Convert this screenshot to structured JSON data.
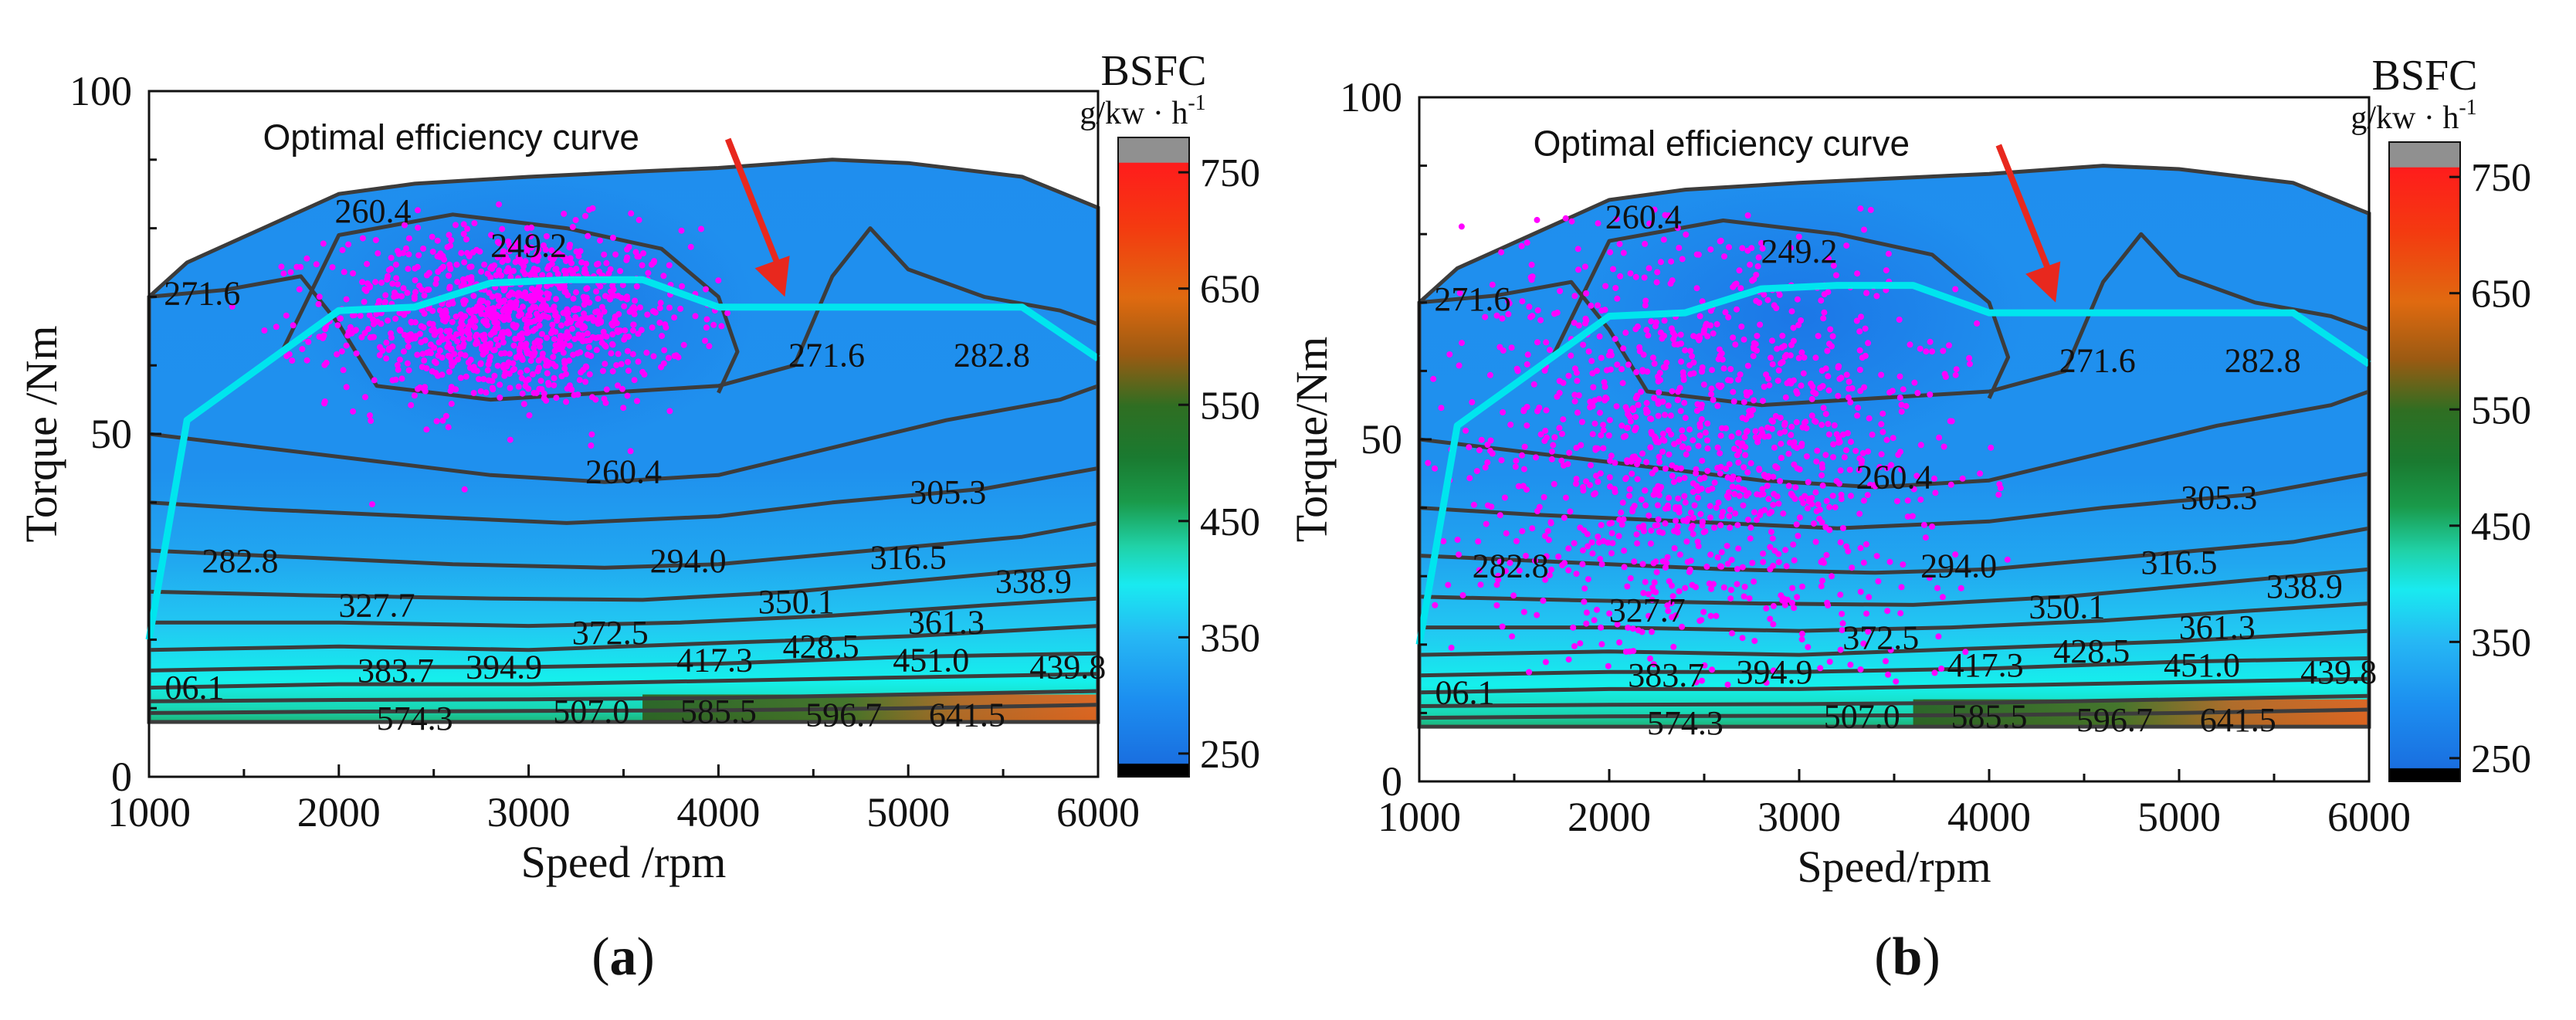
{
  "chart_data": [
    {
      "panel_label": "(a)",
      "type": "heatmap",
      "xlabel": "Speed /rpm",
      "ylabel": "Torque /Nm",
      "xlim": [
        1000,
        6000
      ],
      "ylim": [
        0,
        100
      ],
      "x_ticks": [
        "1000",
        "2000",
        "3000",
        "4000",
        "5000",
        "6000"
      ],
      "y_ticks": [
        "0",
        "50",
        "100"
      ],
      "annotation": "Optimal efficiency curve",
      "colorbar": {
        "title": "BSFC",
        "unit": "g/kw · h",
        "unit_sup": "-1",
        "ticks": [
          "250",
          "350",
          "450",
          "550",
          "650",
          "750"
        ],
        "range": [
          230,
          780
        ]
      },
      "optimal_curve": {
        "x": [
          1000,
          1200,
          2000,
          2400,
          2800,
          3200,
          3600,
          4000,
          5000,
          5600,
          6000
        ],
        "y": [
          20,
          52,
          68,
          68.5,
          72,
          72.5,
          72.5,
          68.5,
          68.5,
          68.5,
          61
        ]
      },
      "contour_labels": [
        {
          "text": "260.4",
          "x": 2180,
          "y": 82
        },
        {
          "text": "249.2",
          "x": 3000,
          "y": 77
        },
        {
          "text": "271.6",
          "x": 1280,
          "y": 70
        },
        {
          "text": "271.6",
          "x": 4570,
          "y": 61
        },
        {
          "text": "282.8",
          "x": 5440,
          "y": 61
        },
        {
          "text": "260.4",
          "x": 3500,
          "y": 44
        },
        {
          "text": "305.3",
          "x": 5210,
          "y": 41
        },
        {
          "text": "282.8",
          "x": 1480,
          "y": 31
        },
        {
          "text": "294.0",
          "x": 3840,
          "y": 31
        },
        {
          "text": "316.5",
          "x": 5000,
          "y": 31.5
        },
        {
          "text": "338.9",
          "x": 5660,
          "y": 28
        },
        {
          "text": "327.7",
          "x": 2200,
          "y": 24.5
        },
        {
          "text": "350.1",
          "x": 4410,
          "y": 25
        },
        {
          "text": "372.5",
          "x": 3430,
          "y": 20.5
        },
        {
          "text": "361.3",
          "x": 5200,
          "y": 22
        },
        {
          "text": "06.1",
          "x": 1240,
          "y": 12.5
        },
        {
          "text": "383.7",
          "x": 2300,
          "y": 15
        },
        {
          "text": "394.9",
          "x": 2870,
          "y": 15.5
        },
        {
          "text": "417.3",
          "x": 3980,
          "y": 16.5
        },
        {
          "text": "428.5",
          "x": 4540,
          "y": 18.5
        },
        {
          "text": "451.0",
          "x": 5120,
          "y": 16.5
        },
        {
          "text": "439.8",
          "x": 5840,
          "y": 15.5
        },
        {
          "text": "574.3",
          "x": 2400,
          "y": 8
        },
        {
          "text": "507.0",
          "x": 3330,
          "y": 9
        },
        {
          "text": "585.5",
          "x": 4000,
          "y": 9
        },
        {
          "text": "596.7",
          "x": 4660,
          "y": 8.5
        },
        {
          "text": "641.5",
          "x": 5310,
          "y": 8.5
        }
      ],
      "operating_points": {
        "x_center": 2900,
        "y_center": 67,
        "x_spread": 850,
        "y_spread": 6.5,
        "count": 1100
      }
    },
    {
      "panel_label": "(b)",
      "type": "heatmap",
      "xlabel": "Speed/rpm",
      "ylabel": "Torque/Nm",
      "xlim": [
        1000,
        6000
      ],
      "ylim": [
        0,
        100
      ],
      "x_ticks": [
        "1000",
        "2000",
        "3000",
        "4000",
        "5000",
        "6000"
      ],
      "y_ticks": [
        "0",
        "50",
        "100"
      ],
      "annotation": "Optimal efficiency curve",
      "colorbar": {
        "title": "BSFC",
        "unit": "g/kw · h",
        "unit_sup": "-1",
        "ticks": [
          "250",
          "350",
          "450",
          "550",
          "650",
          "750"
        ],
        "range": [
          230,
          780
        ]
      },
      "optimal_curve": {
        "x": [
          1000,
          1200,
          2000,
          2400,
          2800,
          3200,
          3600,
          4000,
          5000,
          5600,
          6000
        ],
        "y": [
          20,
          52,
          68,
          68.5,
          72,
          72.5,
          72.5,
          68.5,
          68.5,
          68.5,
          61
        ]
      },
      "contour_labels": [
        {
          "text": "260.4",
          "x": 2180,
          "y": 82
        },
        {
          "text": "249.2",
          "x": 3000,
          "y": 77
        },
        {
          "text": "271.6",
          "x": 1280,
          "y": 70
        },
        {
          "text": "271.6",
          "x": 4570,
          "y": 61
        },
        {
          "text": "282.8",
          "x": 5440,
          "y": 61
        },
        {
          "text": "260.4",
          "x": 3500,
          "y": 44
        },
        {
          "text": "305.3",
          "x": 5210,
          "y": 41
        },
        {
          "text": "282.8",
          "x": 1480,
          "y": 31
        },
        {
          "text": "294.0",
          "x": 3840,
          "y": 31
        },
        {
          "text": "316.5",
          "x": 5000,
          "y": 31.5
        },
        {
          "text": "338.9",
          "x": 5660,
          "y": 28
        },
        {
          "text": "327.7",
          "x": 2200,
          "y": 24.5
        },
        {
          "text": "350.1",
          "x": 4410,
          "y": 25
        },
        {
          "text": "372.5",
          "x": 3430,
          "y": 20.5
        },
        {
          "text": "361.3",
          "x": 5200,
          "y": 22
        },
        {
          "text": "06.1",
          "x": 1240,
          "y": 12.5
        },
        {
          "text": "383.7",
          "x": 2300,
          "y": 15
        },
        {
          "text": "394.9",
          "x": 2870,
          "y": 15.5
        },
        {
          "text": "417.3",
          "x": 3980,
          "y": 16.5
        },
        {
          "text": "428.5",
          "x": 4540,
          "y": 18.5
        },
        {
          "text": "451.0",
          "x": 5120,
          "y": 16.5
        },
        {
          "text": "439.8",
          "x": 5840,
          "y": 15.5
        },
        {
          "text": "574.3",
          "x": 2400,
          "y": 8
        },
        {
          "text": "507.0",
          "x": 3330,
          "y": 9
        },
        {
          "text": "585.5",
          "x": 4000,
          "y": 9
        },
        {
          "text": "596.7",
          "x": 4660,
          "y": 8.5
        },
        {
          "text": "641.5",
          "x": 5310,
          "y": 8.5
        }
      ],
      "operating_points": {
        "x_center": 2500,
        "y_center": 50,
        "x_spread": 1200,
        "y_spread": 17,
        "count": 1300
      }
    }
  ],
  "colors": {
    "optimal_curve": "#00e5ee",
    "points": "#ff00ff",
    "contour": "#3c3c3c",
    "arrow": "#e8281e"
  }
}
